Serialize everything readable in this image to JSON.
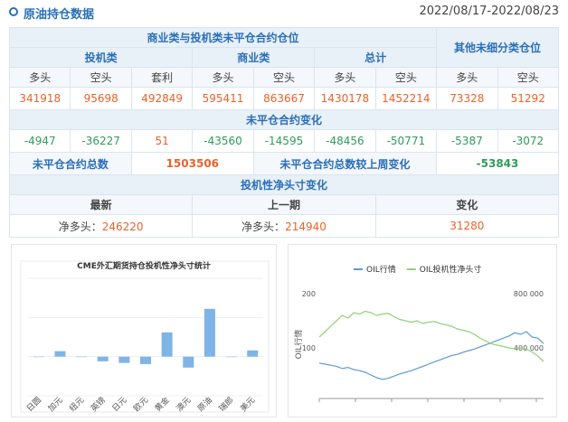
{
  "header": {
    "title": "原油持仓数据",
    "date_range": "2022/08/17-2022/08/23"
  },
  "table": {
    "group_header": "商业类与投机类未平仓合约仓位",
    "other_header": "其他未细分类仓位",
    "sub_headers": [
      "投机类",
      "商业类",
      "总计"
    ],
    "columns": [
      "多头",
      "空头",
      "套利",
      "多头",
      "空头",
      "多头",
      "空头",
      "多头",
      "空头"
    ],
    "positions": [
      341918,
      95698,
      492849,
      595411,
      863667,
      1430178,
      1452214,
      73328,
      51292
    ],
    "change_header": "未平仓合约变化",
    "changes": [
      -4947,
      -36227,
      51,
      -43560,
      -14595,
      -48456,
      -50771,
      -5387,
      -3072
    ],
    "total_label": "未平仓合约总数",
    "total": 1503506,
    "total_change_label": "未平仓合约总数较上周变化",
    "total_change": -53843,
    "net_header": "投机性净头寸变化",
    "net_columns": [
      "最新",
      "上一期",
      "变化"
    ],
    "net_prefix": "净多头：",
    "net_latest": 246220,
    "net_previous": 214940,
    "net_change": 31280
  },
  "chart_data": [
    {
      "type": "bar",
      "title": "CME外汇期货持仓投机性净头寸统计",
      "categories": [
        "日圆",
        "加元",
        "纽元",
        "英镑",
        "日元",
        "欧元",
        "黄金",
        "澳元",
        "原油",
        "瑞郎",
        "美元"
      ],
      "values": [
        0,
        14,
        0,
        -12,
        -16,
        -19,
        62,
        -28,
        122,
        0,
        16
      ],
      "color": "#7fb4e6",
      "ylim": [
        -100,
        200
      ]
    },
    {
      "type": "line",
      "ylabel": "OIL行情",
      "series": [
        {
          "name": "OIL行情",
          "color": "#5b9bd5",
          "values": [
            72,
            70,
            68,
            66,
            62,
            64,
            60,
            58,
            55,
            50,
            45,
            42,
            44,
            48,
            52,
            55,
            58,
            62,
            66,
            70,
            74,
            78,
            82,
            86,
            88,
            92,
            95,
            98,
            102,
            106,
            110,
            114,
            118,
            122,
            128,
            125,
            130,
            120,
            118,
            108
          ]
        },
        {
          "name": "OIL投机性净头寸",
          "color": "#8fd17a",
          "axis": "y2",
          "values": [
            480000,
            520000,
            560000,
            600000,
            640000,
            620000,
            660000,
            650000,
            670000,
            660000,
            640000,
            650000,
            655000,
            630000,
            610000,
            600000,
            590000,
            600000,
            580000,
            590000,
            595000,
            580000,
            570000,
            560000,
            540000,
            530000,
            520000,
            500000,
            470000,
            450000,
            430000,
            420000,
            410000,
            400000,
            395000,
            400000,
            390000,
            370000,
            340000,
            300000
          ]
        }
      ],
      "ylim": [
        6.7,
        200
      ],
      "yticks": [
        100,
        200
      ],
      "y2lim": [
        26667,
        800000
      ],
      "y2ticks": [
        {
          "value": 400000,
          "label": "400 000"
        },
        {
          "value": 800000,
          "label": "800 000"
        }
      ]
    }
  ]
}
